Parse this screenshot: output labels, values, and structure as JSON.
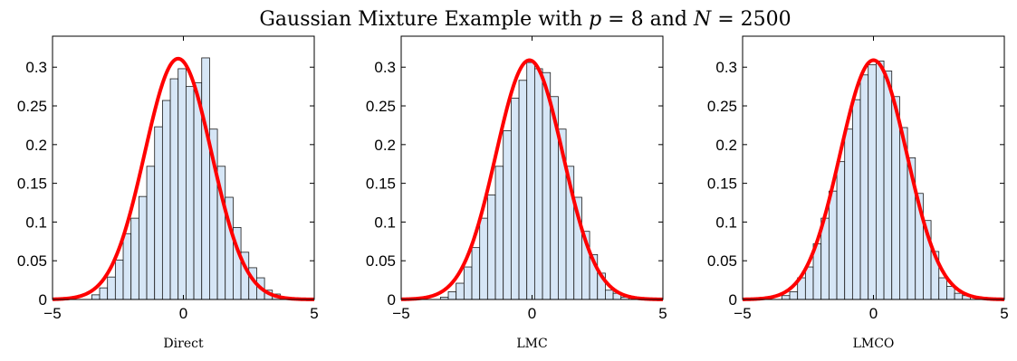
{
  "title": {
    "prefix": "Gaussian Mixture Example with ",
    "p_var": "p",
    "p_eq": " = 8 and ",
    "n_var": "N",
    "n_eq": " = 2500"
  },
  "chart_data": [
    {
      "type": "bar",
      "overlay": "line",
      "xlabel": "Direct",
      "xlim": [
        -5,
        5
      ],
      "ylim": [
        0,
        0.34
      ],
      "xticks": [
        -5,
        0,
        5
      ],
      "yticks": [
        0,
        0.05,
        0.1,
        0.15,
        0.2,
        0.25,
        0.3
      ],
      "bin_edges": [
        -3.5,
        -3.2,
        -2.9,
        -2.6,
        -2.3,
        -2.0,
        -1.7,
        -1.4,
        -1.1,
        -0.8,
        -0.5,
        -0.2,
        0.1,
        0.4,
        0.7,
        1.0,
        1.3,
        1.6,
        1.9,
        2.2,
        2.5,
        2.8,
        3.1,
        3.4,
        3.7
      ],
      "bin_values": [
        0.006,
        0.015,
        0.029,
        0.051,
        0.085,
        0.105,
        0.133,
        0.172,
        0.223,
        0.257,
        0.285,
        0.298,
        0.275,
        0.28,
        0.312,
        0.22,
        0.172,
        0.132,
        0.093,
        0.061,
        0.041,
        0.028,
        0.012,
        0.007
      ],
      "curve": {
        "type": "gaussian",
        "mean": -0.2,
        "peak": 0.311,
        "sigma": 1.28
      },
      "colors": {
        "bar_fill": "#d6e6f6",
        "bar_edge": "#1a1a1a",
        "curve": "#ff0000"
      }
    },
    {
      "type": "bar",
      "overlay": "line",
      "xlabel": "LMC",
      "xlim": [
        -5,
        5
      ],
      "ylim": [
        0,
        0.34
      ],
      "xticks": [
        -5,
        0,
        5
      ],
      "yticks": [
        0,
        0.05,
        0.1,
        0.15,
        0.2,
        0.25,
        0.3
      ],
      "bin_edges": [
        -3.5,
        -3.2,
        -2.9,
        -2.6,
        -2.3,
        -2.0,
        -1.7,
        -1.4,
        -1.1,
        -0.8,
        -0.5,
        -0.2,
        0.1,
        0.4,
        0.7,
        1.0,
        1.3,
        1.6,
        1.9,
        2.2,
        2.5,
        2.8,
        3.1,
        3.4,
        3.7
      ],
      "bin_values": [
        0.003,
        0.01,
        0.021,
        0.042,
        0.067,
        0.105,
        0.135,
        0.172,
        0.218,
        0.26,
        0.283,
        0.306,
        0.298,
        0.293,
        0.262,
        0.22,
        0.172,
        0.132,
        0.088,
        0.058,
        0.034,
        0.012,
        0.008,
        0.003
      ],
      "curve": {
        "type": "gaussian",
        "mean": -0.1,
        "peak": 0.309,
        "sigma": 1.28
      },
      "colors": {
        "bar_fill": "#d6e6f6",
        "bar_edge": "#1a1a1a",
        "curve": "#ff0000"
      }
    },
    {
      "type": "bar",
      "overlay": "line",
      "xlabel": "LMCO",
      "xlim": [
        -5,
        5
      ],
      "ylim": [
        0,
        0.34
      ],
      "xticks": [
        -5,
        0,
        5
      ],
      "yticks": [
        0,
        0.05,
        0.1,
        0.15,
        0.2,
        0.25,
        0.3
      ],
      "bin_edges": [
        -3.5,
        -3.2,
        -2.9,
        -2.6,
        -2.3,
        -2.0,
        -1.7,
        -1.4,
        -1.1,
        -0.8,
        -0.5,
        -0.2,
        0.1,
        0.4,
        0.7,
        1.0,
        1.3,
        1.6,
        1.9,
        2.2,
        2.5,
        2.8,
        3.1,
        3.4,
        3.7
      ],
      "bin_values": [
        0.005,
        0.01,
        0.028,
        0.042,
        0.072,
        0.105,
        0.14,
        0.178,
        0.22,
        0.258,
        0.29,
        0.303,
        0.308,
        0.295,
        0.262,
        0.222,
        0.183,
        0.137,
        0.102,
        0.062,
        0.028,
        0.017,
        0.008,
        0.005
      ],
      "curve": {
        "type": "gaussian",
        "mean": 0.0,
        "peak": 0.309,
        "sigma": 1.28
      },
      "colors": {
        "bar_fill": "#d6e6f6",
        "bar_edge": "#1a1a1a",
        "curve": "#ff0000"
      }
    }
  ]
}
